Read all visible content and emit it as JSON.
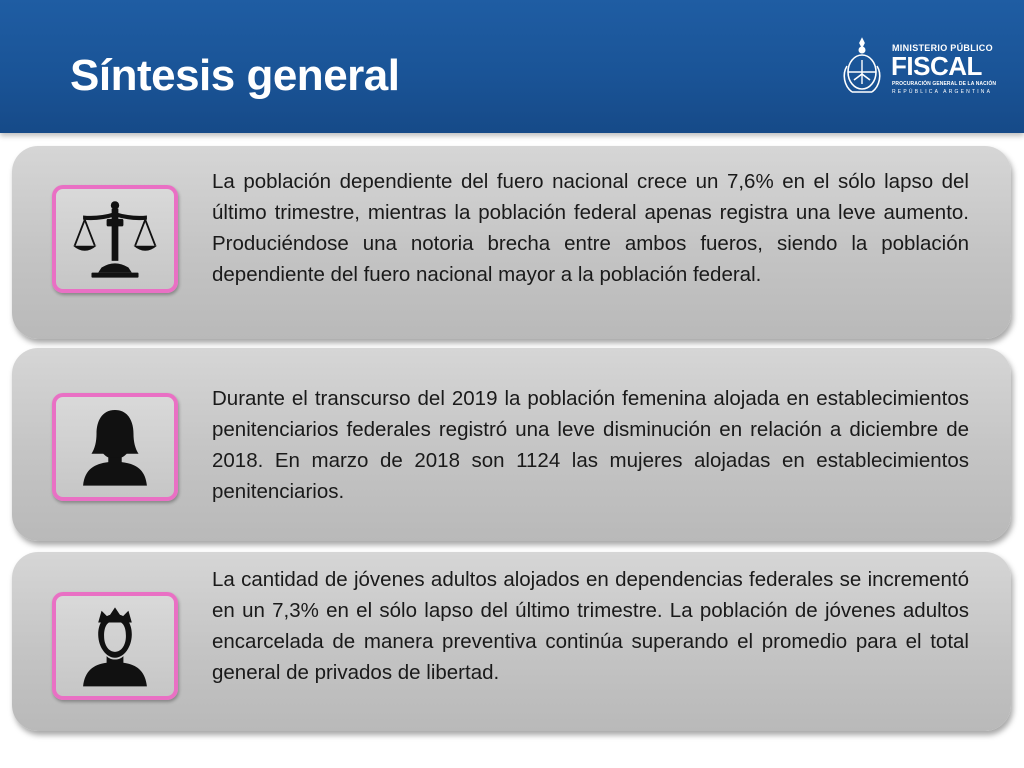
{
  "header": {
    "title": "Síntesis general",
    "logo": {
      "line1": "MINISTERIO PÚBLICO",
      "line2": "FISCAL",
      "line3": "PROCURACIÓN GENERAL DE LA NACIÓN",
      "line4": "REPÚBLICA ARGENTINA"
    }
  },
  "colors": {
    "header_blue": "#1a5497",
    "card_gray": "#c4c4c4",
    "icon_border_pink": "#e970c4"
  },
  "cards": [
    {
      "icon": "scales-of-justice-icon",
      "text": "La población dependiente del fuero nacional crece un 7,6% en el sólo lapso del último trimestre, mientras la población federal apenas registra una leve aumento. Produciéndose una notoria brecha entre ambos fueros, siendo la población dependiente del fuero nacional mayor a la población federal."
    },
    {
      "icon": "woman-silhouette-icon",
      "text": "Durante el transcurso del 2019 la población femenina alojada en establecimientos penitenciarios federales registró una leve disminución en relación a diciembre de 2018. En marzo de 2018 son 1124 las mujeres alojadas en establecimientos penitenciarios."
    },
    {
      "icon": "young-man-silhouette-icon",
      "text": "La cantidad de jóvenes adultos alojados en dependencias federales se incrementó en un 7,3% en el sólo lapso del último trimestre. La población de jóvenes adultos encarcelada de manera preventiva continúa superando el promedio para el total general de privados de libertad."
    }
  ]
}
